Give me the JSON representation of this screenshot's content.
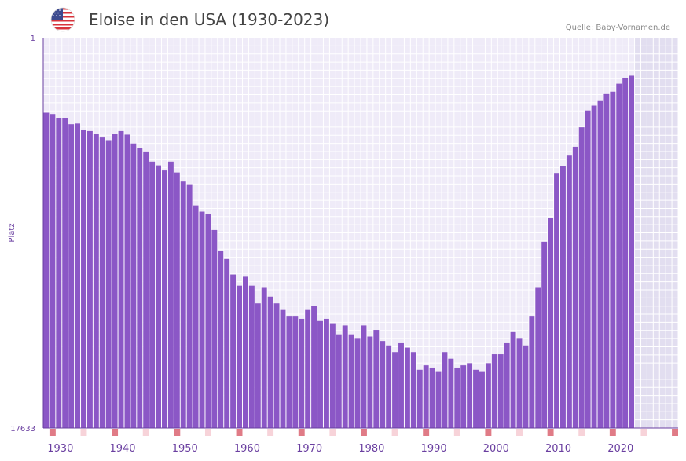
{
  "header": {
    "title": "Eloise in den USA (1930-2023)",
    "source": "Quelle: Baby-Vornamen.de",
    "flag_icon": "usa-flag-icon"
  },
  "chart_data": {
    "type": "bar",
    "title": "Eloise in den USA (1930-2023)",
    "ylabel": "Platz",
    "y_axis_reversed": true,
    "ylim": [
      1,
      17633
    ],
    "y_tick_labels": [
      "1",
      "17633"
    ],
    "x_tick_labels": [
      "1930",
      "1940",
      "1950",
      "1960",
      "1970",
      "1980",
      "1990",
      "2000",
      "2010",
      "2020"
    ],
    "x_range": [
      1928,
      2029
    ],
    "shaded_future_from": 2023,
    "years": [
      1928,
      1929,
      1930,
      1931,
      1932,
      1933,
      1934,
      1935,
      1936,
      1937,
      1938,
      1939,
      1940,
      1941,
      1942,
      1943,
      1944,
      1945,
      1946,
      1947,
      1948,
      1949,
      1950,
      1951,
      1952,
      1953,
      1954,
      1955,
      1956,
      1957,
      1958,
      1959,
      1960,
      1961,
      1962,
      1963,
      1964,
      1965,
      1966,
      1967,
      1968,
      1969,
      1970,
      1971,
      1972,
      1973,
      1974,
      1975,
      1976,
      1977,
      1978,
      1979,
      1980,
      1981,
      1982,
      1983,
      1984,
      1985,
      1986,
      1987,
      1988,
      1989,
      1990,
      1991,
      1992,
      1993,
      1994,
      1995,
      1996,
      1997,
      1998,
      1999,
      2000,
      2001,
      2002,
      2003,
      2004,
      2005,
      2006,
      2007,
      2008,
      2009,
      2010,
      2011,
      2012,
      2013,
      2014,
      2015,
      2016,
      2017,
      2018,
      2019,
      2020,
      2021,
      2022
    ],
    "values": [
      3390,
      3450,
      3620,
      3620,
      3910,
      3880,
      4160,
      4220,
      4340,
      4510,
      4630,
      4360,
      4220,
      4380,
      4780,
      4990,
      5140,
      5600,
      5770,
      6000,
      5600,
      6090,
      6500,
      6620,
      7580,
      7860,
      7950,
      8690,
      9650,
      10000,
      10700,
      11200,
      10800,
      11200,
      12000,
      11300,
      11700,
      12000,
      12300,
      12600,
      12600,
      12700,
      12300,
      12100,
      12800,
      12700,
      12900,
      13400,
      13000,
      13400,
      13600,
      13000,
      13500,
      13200,
      13700,
      13900,
      14200,
      13800,
      14000,
      14200,
      15000,
      14800,
      14900,
      15100,
      14200,
      14500,
      14900,
      14800,
      14700,
      15000,
      15100,
      14700,
      14300,
      14300,
      13800,
      13300,
      13600,
      13900,
      12600,
      11300,
      9220,
      8160,
      6110,
      5790,
      5330,
      4930,
      4050,
      3290,
      3070,
      2830,
      2550,
      2440,
      2080,
      1810,
      1720
    ],
    "marker_years": [
      1929,
      1939,
      1949,
      1959,
      1969,
      1979,
      1989,
      1999,
      2009,
      2019,
      2029
    ],
    "minor_marker_years": [
      1934,
      1944,
      1954,
      1964,
      1974,
      1984,
      1994,
      2004,
      2014,
      2024
    ],
    "colors": {
      "bar": "#8b57c6",
      "grid_bg": "#efebf8",
      "grid_line": "#ffffff",
      "future_bg": "#e2def0",
      "axis": "#6a3fa0",
      "marker": "#e07b86",
      "minor_marker": "#f7d3d9",
      "tick_text": "#6a3fa0"
    }
  }
}
